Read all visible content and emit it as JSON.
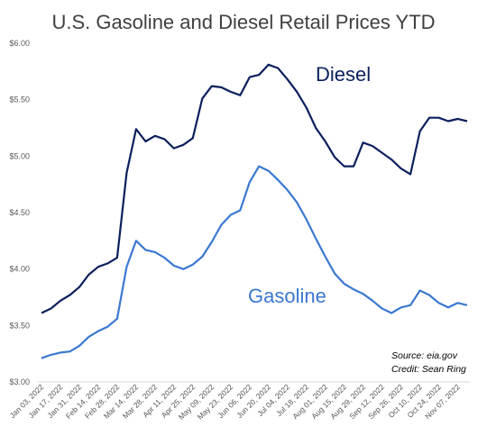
{
  "chart_data": {
    "type": "line",
    "title": "U.S. Gasoline and Diesel Retail Prices YTD",
    "xlabel": "",
    "ylabel": "",
    "ylim": [
      3.0,
      6.0
    ],
    "y_ticks": [
      "$3.00",
      "$3.50",
      "$4.00",
      "$4.50",
      "$5.00",
      "$5.50",
      "$6.00"
    ],
    "y_tick_values": [
      3.0,
      3.5,
      4.0,
      4.5,
      5.0,
      5.5,
      6.0
    ],
    "x_tick_labels": [
      "Jan 03, 2022",
      "Jan 17, 2022",
      "Jan 31, 2022",
      "Feb 14, 2022",
      "Feb 28, 2022",
      "Mar 14, 2022",
      "Mar 28, 2022",
      "Apr 11, 2022",
      "Apr 25, 2022",
      "May 09, 2022",
      "May 23, 2022",
      "Jun 06, 2022",
      "Jun 20, 2022",
      "Jul 04, 2022",
      "Jul 18, 2022",
      "Aug 01, 2022",
      "Aug 15, 2022",
      "Aug 29, 2022",
      "Sep 12, 2022",
      "Sep 26, 2022",
      "Oct 10, 2022",
      "Oct 24, 2022",
      "Nov 07, 2022"
    ],
    "x": [
      "2022-01-03",
      "2022-01-10",
      "2022-01-17",
      "2022-01-24",
      "2022-01-31",
      "2022-02-07",
      "2022-02-14",
      "2022-02-21",
      "2022-02-28",
      "2022-03-07",
      "2022-03-14",
      "2022-03-21",
      "2022-03-28",
      "2022-04-04",
      "2022-04-11",
      "2022-04-18",
      "2022-04-25",
      "2022-05-02",
      "2022-05-09",
      "2022-05-16",
      "2022-05-23",
      "2022-05-30",
      "2022-06-06",
      "2022-06-13",
      "2022-06-20",
      "2022-06-27",
      "2022-07-04",
      "2022-07-11",
      "2022-07-18",
      "2022-07-25",
      "2022-08-01",
      "2022-08-08",
      "2022-08-15",
      "2022-08-22",
      "2022-08-29",
      "2022-09-05",
      "2022-09-12",
      "2022-09-19",
      "2022-09-26",
      "2022-10-03",
      "2022-10-10",
      "2022-10-17",
      "2022-10-24",
      "2022-10-31",
      "2022-11-07",
      "2022-11-14"
    ],
    "series": [
      {
        "name": "Diesel",
        "color": "#0b1f5c",
        "values": [
          3.61,
          3.65,
          3.72,
          3.77,
          3.84,
          3.95,
          4.02,
          4.05,
          4.1,
          4.85,
          5.24,
          5.13,
          5.18,
          5.15,
          5.07,
          5.1,
          5.16,
          5.51,
          5.62,
          5.61,
          5.57,
          5.54,
          5.7,
          5.72,
          5.81,
          5.78,
          5.68,
          5.57,
          5.43,
          5.25,
          5.13,
          4.99,
          4.91,
          4.91,
          5.12,
          5.09,
          5.03,
          4.97,
          4.89,
          4.84,
          5.22,
          5.34,
          5.34,
          5.31,
          5.33,
          5.31
        ]
      },
      {
        "name": "Gasoline",
        "color": "#3b78d0",
        "values": [
          3.21,
          3.24,
          3.26,
          3.27,
          3.32,
          3.4,
          3.45,
          3.49,
          3.56,
          4.02,
          4.25,
          4.17,
          4.15,
          4.1,
          4.03,
          4.0,
          4.04,
          4.11,
          4.24,
          4.39,
          4.48,
          4.52,
          4.77,
          4.91,
          4.87,
          4.79,
          4.7,
          4.59,
          4.44,
          4.27,
          4.11,
          3.96,
          3.87,
          3.82,
          3.78,
          3.72,
          3.65,
          3.61,
          3.66,
          3.68,
          3.81,
          3.77,
          3.7,
          3.66,
          3.7,
          3.68
        ]
      }
    ],
    "annotations": [
      "Source: eia.gov",
      "Credit: Sean Ring"
    ],
    "grid": false,
    "legend": "inline labels"
  }
}
